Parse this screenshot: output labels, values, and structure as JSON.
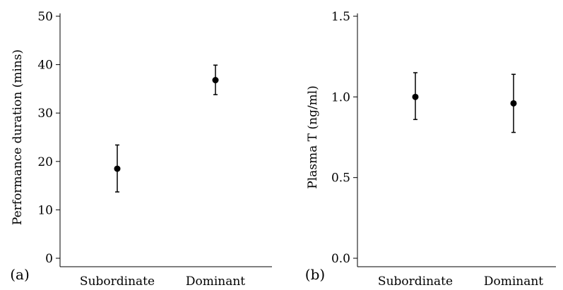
{
  "chart_data": [
    {
      "type": "scatter",
      "panel_label": "(a)",
      "title": "",
      "xlabel": "",
      "ylabel": "Performance duration (mins)",
      "categories": [
        "Subordinate",
        "Dominant"
      ],
      "series": [
        {
          "values": [
            18.5,
            36.8
          ],
          "error_low": [
            13.7,
            33.8
          ],
          "error_high": [
            23.4,
            39.9
          ]
        }
      ],
      "ylim": [
        0,
        50
      ],
      "yticks": [
        0,
        10,
        20,
        30,
        40,
        50
      ],
      "ytick_labels": [
        "0",
        "10",
        "20",
        "30",
        "40",
        "50"
      ],
      "grid": false,
      "legend": "none"
    },
    {
      "type": "scatter",
      "panel_label": "(b)",
      "title": "",
      "xlabel": "",
      "ylabel": "Plasma T (ng/ml)",
      "categories": [
        "Subordinate",
        "Dominant"
      ],
      "series": [
        {
          "values": [
            1.0,
            0.96
          ],
          "error_low": [
            0.86,
            0.78
          ],
          "error_high": [
            1.15,
            1.14
          ]
        }
      ],
      "ylim": [
        0,
        1.5
      ],
      "yticks": [
        0.0,
        0.5,
        1.0,
        1.5
      ],
      "ytick_labels": [
        "0.0",
        "0.5",
        "1.0",
        "1.5"
      ],
      "grid": false,
      "legend": "none"
    }
  ]
}
